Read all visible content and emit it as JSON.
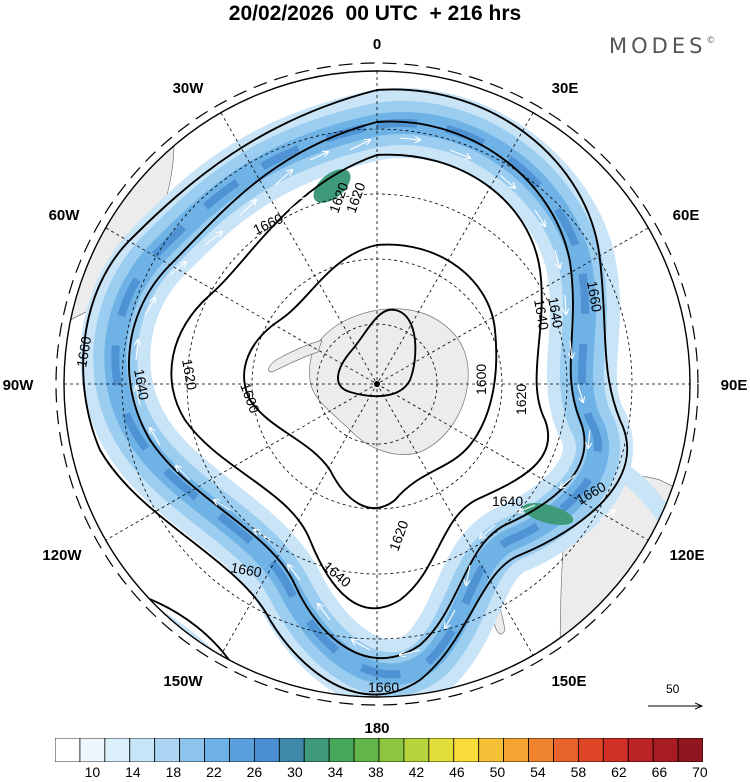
{
  "header": {
    "title": "20/02/2026  00 UTC  + 216 hrs",
    "brand": "MODES",
    "brand_mark": "©"
  },
  "map": {
    "projection": "polar-stereographic",
    "hemisphere": "southern",
    "longitude_labels": [
      "0",
      "30E",
      "60E",
      "90E",
      "120E",
      "150E",
      "180",
      "150W",
      "120W",
      "90W",
      "60W",
      "30W"
    ],
    "contour_labels": [
      "1620",
      "1660",
      "1660",
      "1640",
      "1620",
      "1600",
      "1600",
      "1620",
      "1640",
      "1660",
      "1640",
      "1620",
      "1640",
      "1660",
      "1660",
      "1640",
      "1620",
      "1660"
    ],
    "wind_field_description": "",
    "reference_vector": {
      "value": "50"
    }
  },
  "colorbar": {
    "colors": [
      "#ffffff",
      "#eef7fd",
      "#dcf0fb",
      "#c7e5f8",
      "#acd6f4",
      "#8cc4ee",
      "#6eb1e6",
      "#5a9fdc",
      "#4b8fd2",
      "#3f88a8",
      "#3f9a7a",
      "#47a85a",
      "#62b548",
      "#8cc641",
      "#b8d43c",
      "#e2df3a",
      "#f8dc3a",
      "#f7c137",
      "#f5a433",
      "#f0842e",
      "#e8632b",
      "#de4527",
      "#cf2f25",
      "#bb2224",
      "#a71c22",
      "#8f1820"
    ],
    "labels": [
      "10",
      "14",
      "18",
      "22",
      "26",
      "30",
      "34",
      "38",
      "42",
      "46",
      "50",
      "54",
      "58",
      "62",
      "66",
      "70"
    ]
  }
}
